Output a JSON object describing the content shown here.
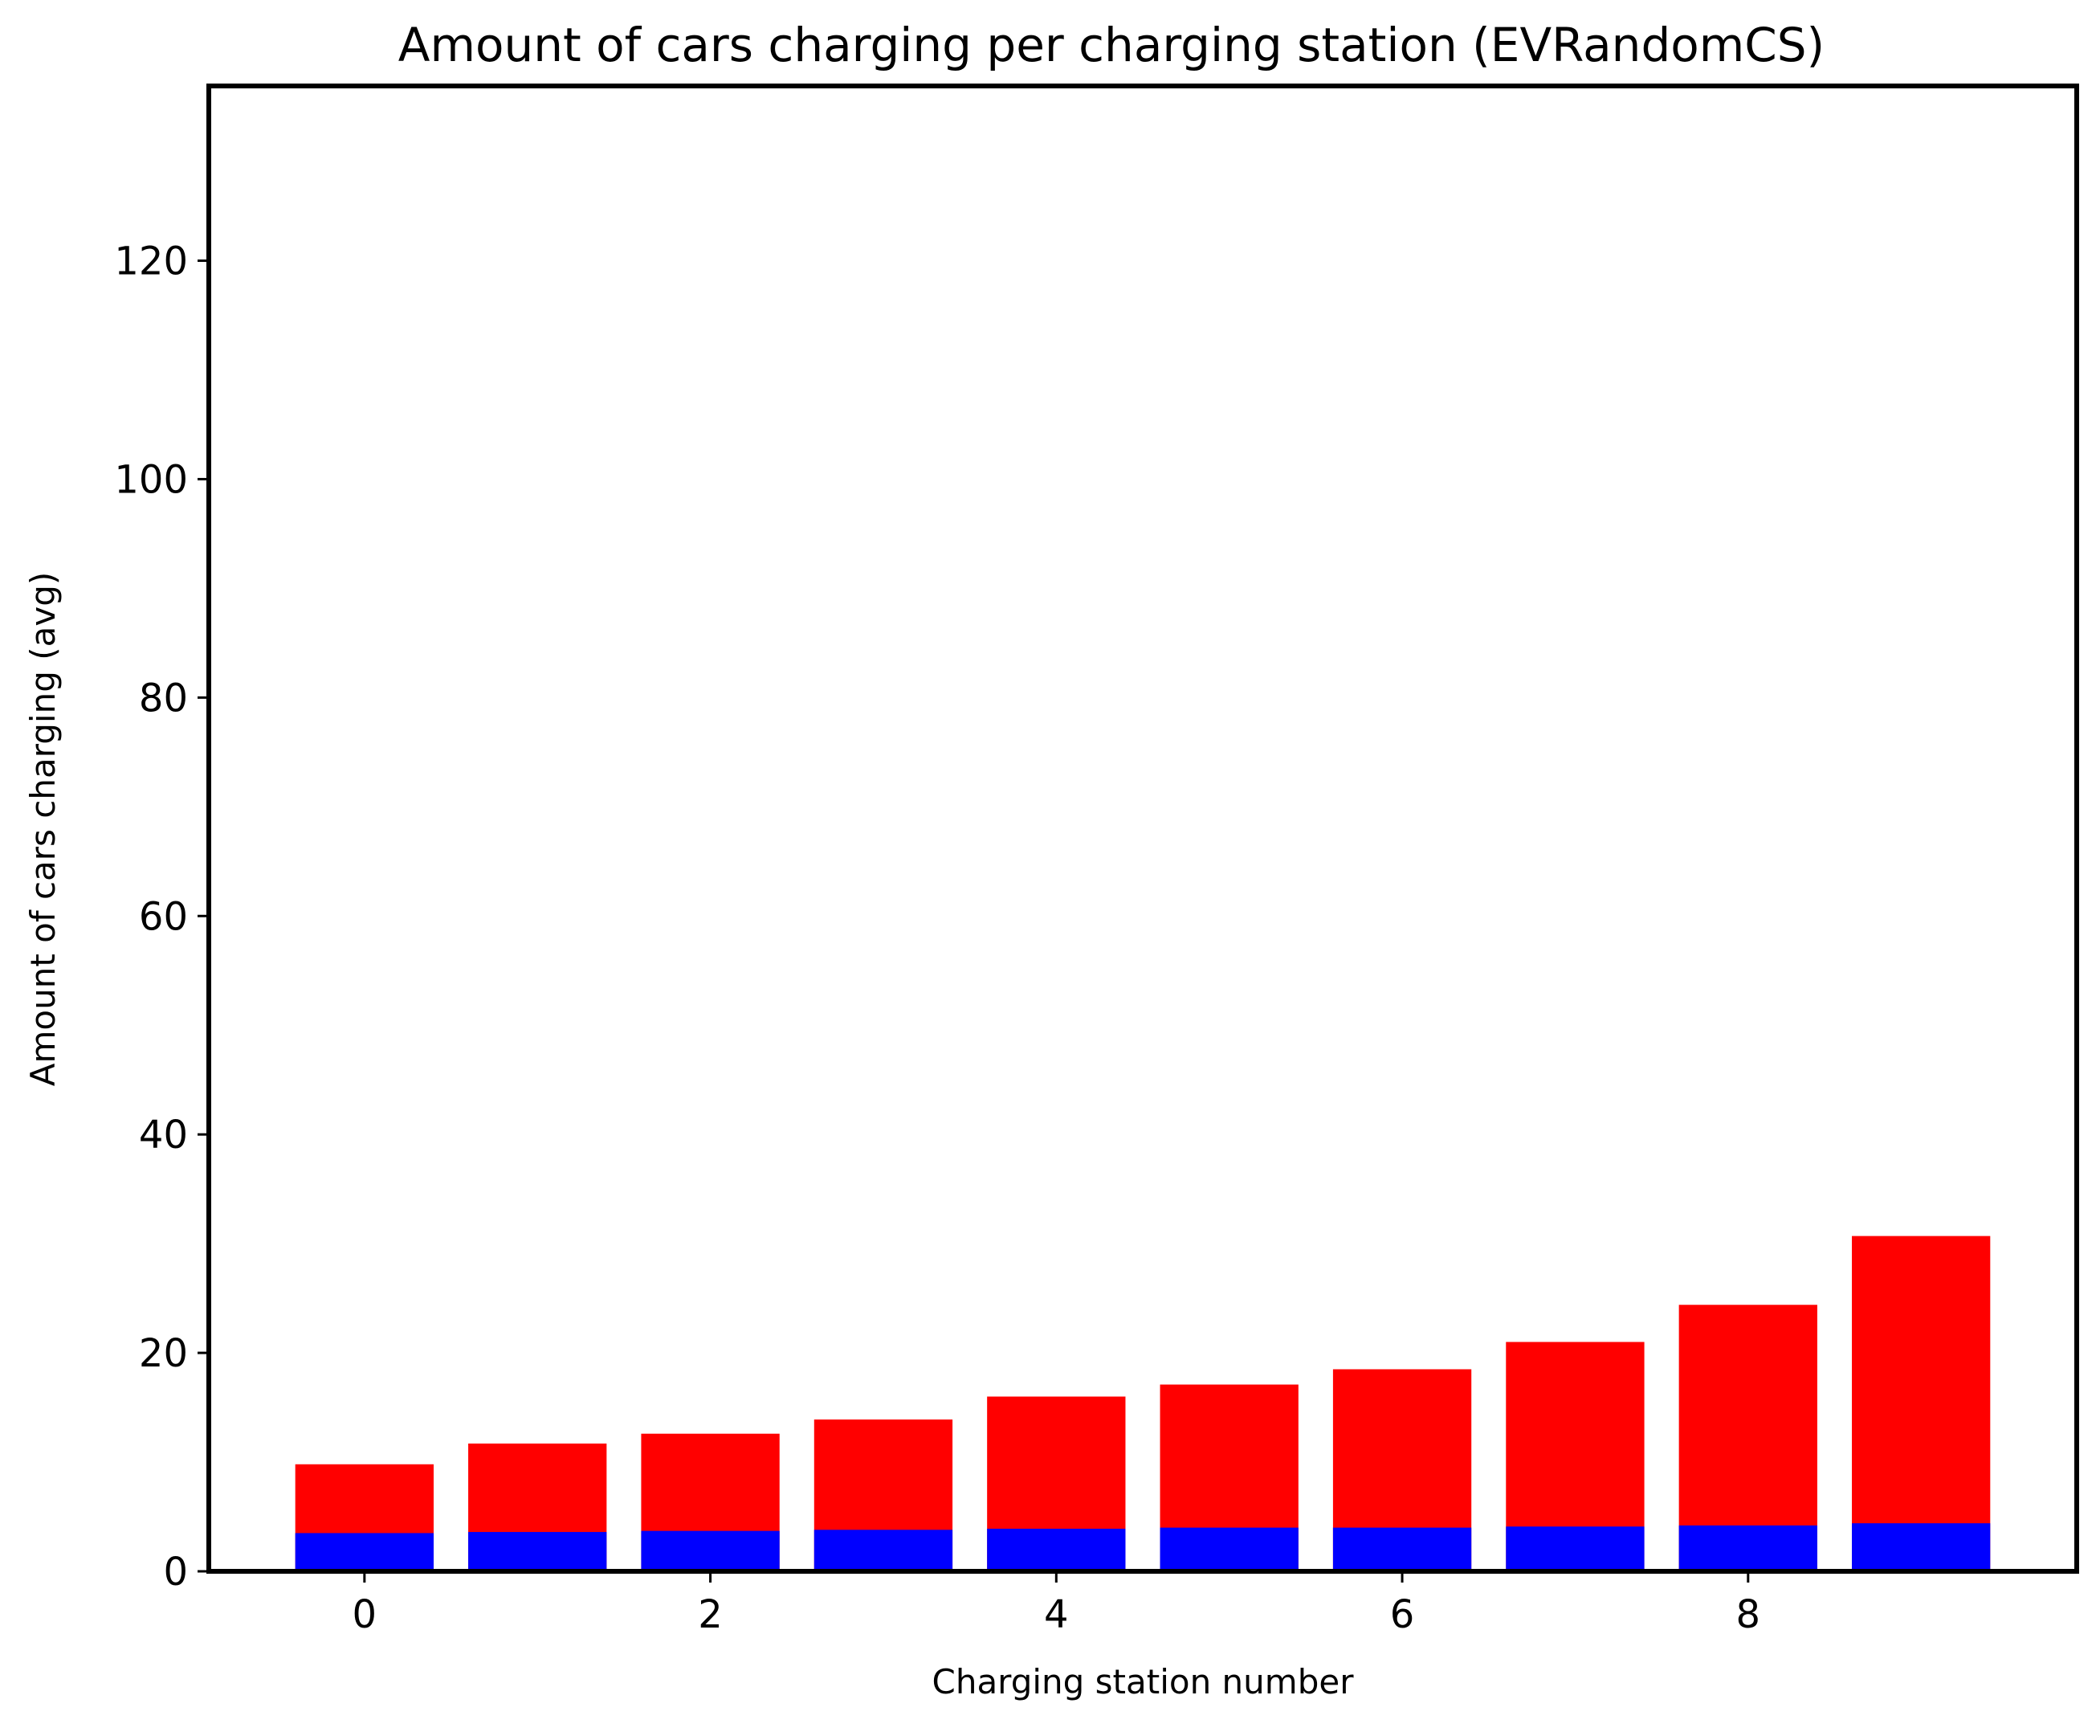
{
  "chart_data": {
    "type": "bar",
    "title": "Amount of cars charging per charging station (EVRandomCS)",
    "xlabel": "Charging station number",
    "ylabel": "Amount of cars charging (avg)",
    "x": [
      0,
      1,
      2,
      3,
      4,
      5,
      6,
      7,
      8,
      9
    ],
    "xticks": [
      0,
      2,
      4,
      6,
      8
    ],
    "yticks": [
      0,
      20,
      40,
      60,
      80,
      100,
      120
    ],
    "xlim": [
      -0.9,
      9.9
    ],
    "ylim": [
      0,
      136
    ],
    "stacked_overlay": true,
    "grid": false,
    "series": [
      {
        "color": "#ff0000",
        "values": [
          9.8,
          11.7,
          12.6,
          13.9,
          16.0,
          17.1,
          18.5,
          21.0,
          24.4,
          30.7
        ]
      },
      {
        "color": "#0000ff",
        "values": [
          3.5,
          3.6,
          3.7,
          3.8,
          3.9,
          4.0,
          4.0,
          4.1,
          4.2,
          4.4
        ]
      }
    ]
  }
}
